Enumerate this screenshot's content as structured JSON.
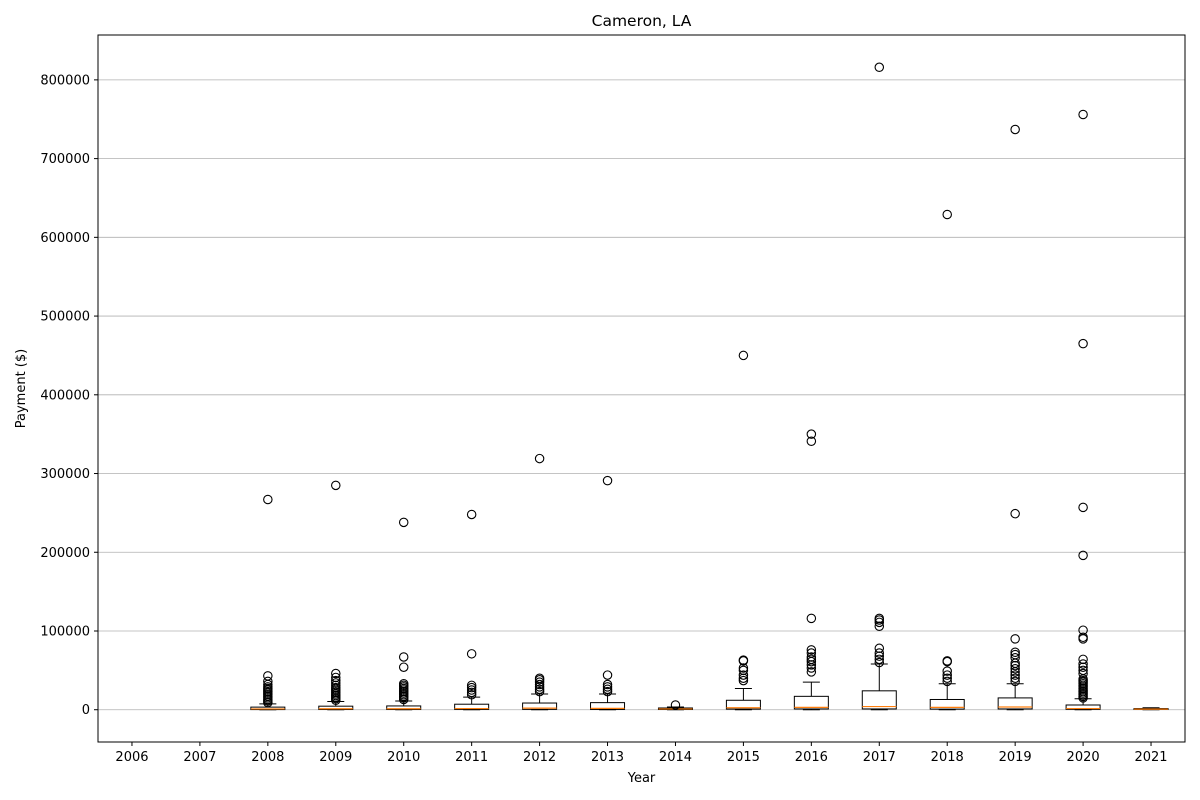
{
  "chart_data": {
    "type": "boxplot",
    "title": "Cameron, LA",
    "xlabel": "Year",
    "ylabel": "Payment ($)",
    "categories": [
      "2006",
      "2007",
      "2008",
      "2009",
      "2010",
      "2011",
      "2012",
      "2013",
      "2014",
      "2015",
      "2016",
      "2017",
      "2018",
      "2019",
      "2020",
      "2021"
    ],
    "ylim": [
      -41000,
      857000
    ],
    "yticks": [
      0,
      100000,
      200000,
      300000,
      400000,
      500000,
      600000,
      700000,
      800000
    ],
    "grid": "y",
    "colors": {
      "box": "#000000",
      "median": "#ff7f0e",
      "grid": "#b0b0b0",
      "flier": "#000000"
    },
    "boxes": [
      {
        "category": "2006",
        "empty": true
      },
      {
        "category": "2007",
        "empty": true
      },
      {
        "category": "2008",
        "whislo": 0,
        "q1": 200,
        "median": 1000,
        "q3": 3300,
        "whishi": 7500,
        "fliers": [
          9000,
          11000,
          13000,
          15000,
          17000,
          19000,
          21000,
          23000,
          25000,
          27000,
          29000,
          32000,
          36000,
          43000,
          267000
        ]
      },
      {
        "category": "2009",
        "whislo": 0,
        "q1": 300,
        "median": 1200,
        "q3": 4500,
        "whishi": 10500,
        "fliers": [
          12000,
          14000,
          16000,
          18000,
          20000,
          22000,
          24000,
          26000,
          28000,
          31000,
          34000,
          37000,
          41000,
          46000,
          285000
        ]
      },
      {
        "category": "2010",
        "whislo": 0,
        "q1": 300,
        "median": 1200,
        "q3": 4800,
        "whishi": 11000,
        "fliers": [
          13000,
          15000,
          17000,
          19000,
          21000,
          23000,
          25000,
          27000,
          29000,
          31000,
          33000,
          54000,
          67000,
          238000
        ]
      },
      {
        "category": "2011",
        "whislo": 0,
        "q1": 400,
        "median": 1500,
        "q3": 7000,
        "whishi": 16000,
        "fliers": [
          19000,
          22000,
          25000,
          28000,
          31000,
          71000,
          248000
        ]
      },
      {
        "category": "2012",
        "whislo": 0,
        "q1": 500,
        "median": 2000,
        "q3": 8500,
        "whishi": 20000,
        "fliers": [
          23000,
          26000,
          29000,
          32000,
          35000,
          38000,
          40000,
          319000
        ]
      },
      {
        "category": "2013",
        "whislo": 0,
        "q1": 400,
        "median": 1700,
        "q3": 9000,
        "whishi": 20000,
        "fliers": [
          23000,
          26000,
          29000,
          32000,
          44000,
          291000
        ]
      },
      {
        "category": "2014",
        "whislo": 0,
        "q1": 300,
        "median": 1000,
        "q3": 2200,
        "whishi": 3500,
        "fliers": [
          6000
        ]
      },
      {
        "category": "2015",
        "whislo": 0,
        "q1": 800,
        "median": 2500,
        "q3": 12000,
        "whishi": 27000,
        "fliers": [
          37000,
          40000,
          44000,
          50000,
          53000,
          62000,
          63000,
          450000
        ]
      },
      {
        "category": "2016",
        "whislo": 0,
        "q1": 1000,
        "median": 3000,
        "q3": 17000,
        "whishi": 35000,
        "fliers": [
          48000,
          53000,
          57000,
          61000,
          64000,
          67000,
          72000,
          76000,
          116000,
          341000,
          350000
        ]
      },
      {
        "category": "2017",
        "whislo": 0,
        "q1": 1000,
        "median": 4000,
        "q3": 24000,
        "whishi": 58000,
        "fliers": [
          60000,
          64000,
          68000,
          72000,
          78000,
          106000,
          111000,
          114000,
          116000,
          816000
        ]
      },
      {
        "category": "2018",
        "whislo": 0,
        "q1": 800,
        "median": 3000,
        "q3": 13000,
        "whishi": 33000,
        "fliers": [
          36000,
          40000,
          44000,
          49000,
          61000,
          62000,
          629000
        ]
      },
      {
        "category": "2019",
        "whislo": 0,
        "q1": 1000,
        "median": 3500,
        "q3": 15000,
        "whishi": 33000,
        "fliers": [
          36000,
          40000,
          44000,
          48000,
          52000,
          56000,
          59000,
          66000,
          70000,
          73000,
          90000,
          249000,
          737000
        ]
      },
      {
        "category": "2020",
        "whislo": 0,
        "q1": 500,
        "median": 1500,
        "q3": 6000,
        "whishi": 14000,
        "fliers": [
          15000,
          17000,
          19000,
          21000,
          23000,
          25000,
          27000,
          29000,
          31000,
          33000,
          35000,
          37000,
          39000,
          46000,
          50000,
          54000,
          58000,
          64000,
          90000,
          92000,
          101000,
          196000,
          257000,
          465000,
          756000
        ]
      },
      {
        "category": "2021",
        "whislo": 0,
        "q1": 300,
        "median": 800,
        "q3": 1500,
        "whishi": 2500,
        "fliers": []
      }
    ]
  }
}
